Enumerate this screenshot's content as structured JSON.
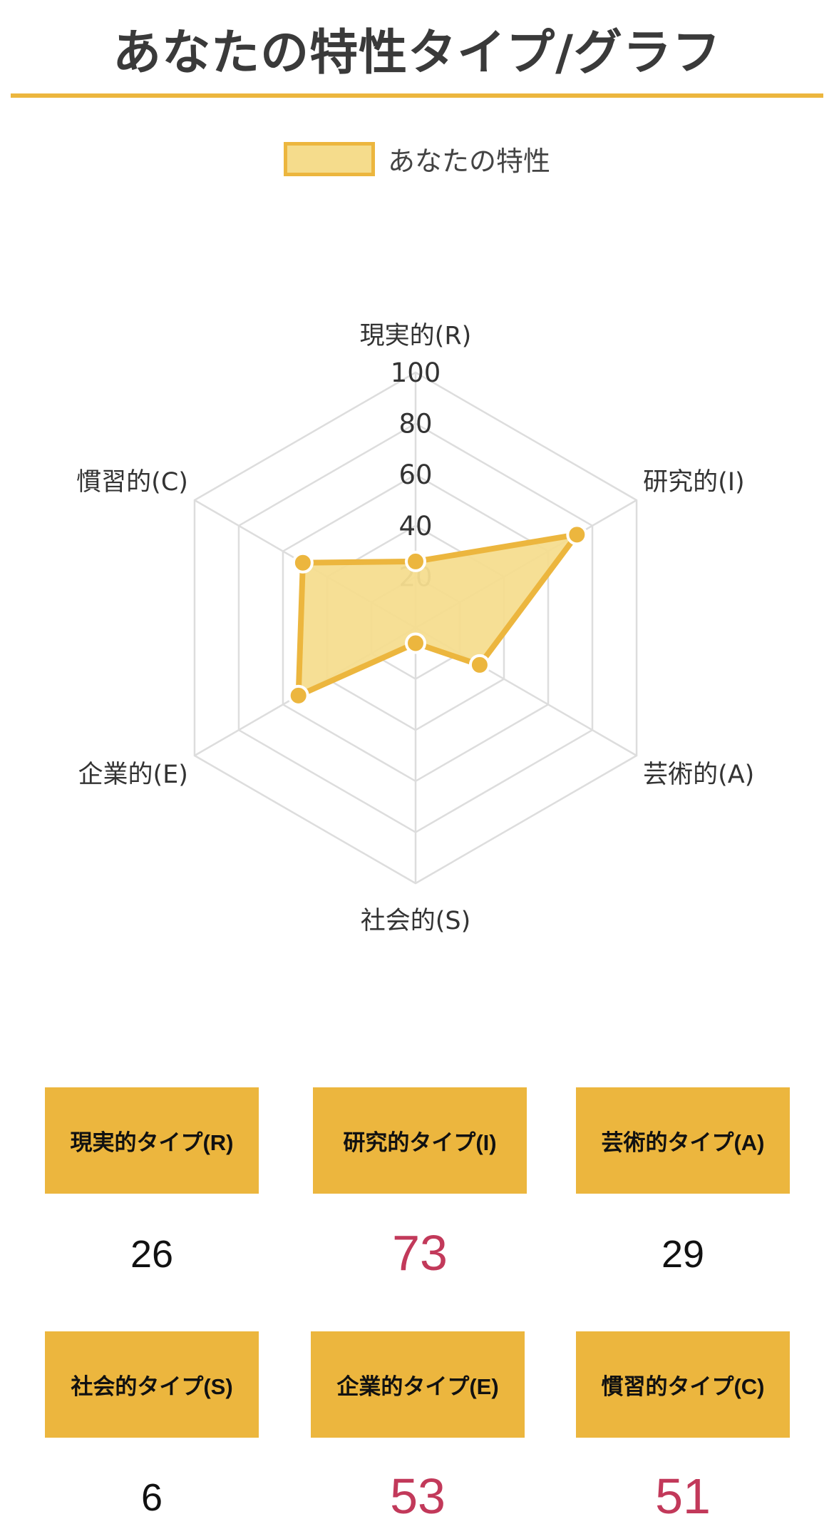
{
  "header": {
    "title": "あなたの特性タイプ/グラフ"
  },
  "colors": {
    "accent": "#ecb63e",
    "fill": "#f5dc8c",
    "highlight": "#c2395a",
    "grid": "#dddddd"
  },
  "chart_data": {
    "type": "radar",
    "categories": [
      "現実的(R)",
      "研究的(I)",
      "芸術的(A)",
      "社会的(S)",
      "企業的(E)",
      "慣習的(C)"
    ],
    "series": [
      {
        "name": "あなたの特性",
        "values": [
          26,
          73,
          29,
          6,
          53,
          51
        ]
      }
    ],
    "rlim": [
      0,
      100
    ],
    "ticks": [
      "20",
      "40",
      "60",
      "80",
      "100"
    ],
    "legend": "top",
    "grid": true
  },
  "cards": [
    {
      "label": "現実的タイプ(R)",
      "value": "26",
      "highlight": false
    },
    {
      "label": "研究的タイプ(I)",
      "value": "73",
      "highlight": true
    },
    {
      "label": "芸術的タイプ(A)",
      "value": "29",
      "highlight": false
    },
    {
      "label": "社会的タイプ(S)",
      "value": "6",
      "highlight": false
    },
    {
      "label": "企業的タイプ(E)",
      "value": "53",
      "highlight": true
    },
    {
      "label": "慣習的タイプ(C)",
      "value": "51",
      "highlight": true
    }
  ]
}
